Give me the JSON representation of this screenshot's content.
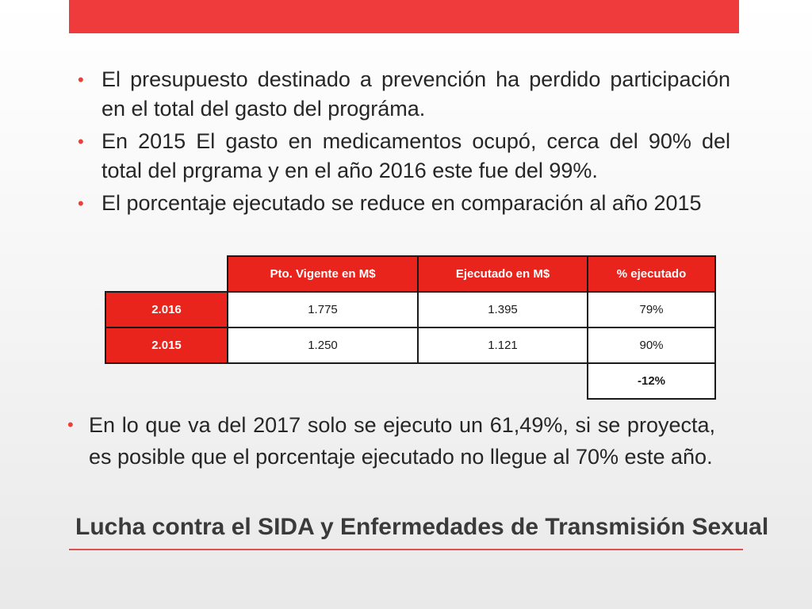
{
  "bullets_top": [
    "El presupuesto destinado a prevención ha perdido participación en el total del gasto del prográma.",
    "En 2015 El gasto en medicamentos ocupó, cerca del 90% del total del prgrama y en el año 2016 este fue del 99%.",
    "El porcentaje ejecutado se reduce en comparación al año 2015"
  ],
  "table": {
    "headers": [
      "Pto. Vigente en M$",
      "Ejecutado en M$",
      "% ejecutado"
    ],
    "rows": [
      {
        "year": "2.016",
        "vigente": "1.775",
        "ejecutado": "1.395",
        "pct": "79%"
      },
      {
        "year": "2.015",
        "vigente": "1.250",
        "ejecutado": "1.121",
        "pct": "90%"
      }
    ],
    "difference": "-12%"
  },
  "bullet_bottom": "En lo que va del 2017 solo se ejecuto un 61,49%, si se proyecta, es posible que el porcentaje ejecutado no llegue al 70% este año.",
  "title": "Lucha contra el SIDA y Enfermedades de Transmisión Sexual",
  "colors": {
    "accent_red": "#ef3b3b",
    "table_red": "#e8241d",
    "bullet_red": "#e8403a"
  }
}
